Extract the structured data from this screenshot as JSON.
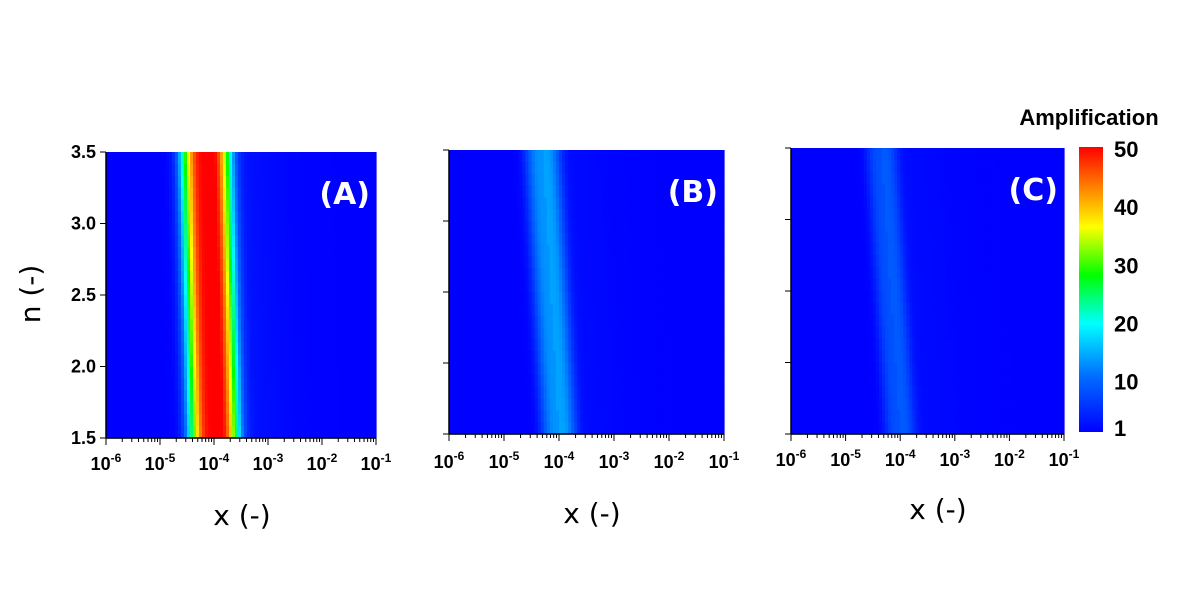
{
  "chart_data": {
    "type": "heatmap",
    "colorbar": {
      "title": "Amplification",
      "ticks": [
        "50",
        "40",
        "30",
        "20",
        "10",
        "1"
      ],
      "tick_values": [
        50,
        40,
        30,
        20,
        10,
        1
      ],
      "range": [
        1,
        50
      ],
      "colors": [
        "#0000ff",
        "#00ffff",
        "#00ff00",
        "#ffff00",
        "#ff0000"
      ]
    },
    "x_axis": {
      "label": "x (-)",
      "scale": "log",
      "range": [
        1e-06,
        0.1
      ],
      "ticks": [
        {
          "base": "10",
          "exp": "-6"
        },
        {
          "base": "10",
          "exp": "-5"
        },
        {
          "base": "10",
          "exp": "-4"
        },
        {
          "base": "10",
          "exp": "-3"
        },
        {
          "base": "10",
          "exp": "-2"
        },
        {
          "base": "10",
          "exp": "-1"
        }
      ]
    },
    "y_axis": {
      "label": "n (-)",
      "range": [
        1.5,
        3.5
      ],
      "ticks": [
        "1.5",
        "2.0",
        "2.5",
        "3.0",
        "3.5"
      ]
    },
    "panels": [
      {
        "label": "(A)",
        "peak_amplification": 50,
        "ridge_x_at_n_min": 0.0001,
        "ridge_x_at_n_max": 7e-05,
        "ridge_log_width": 0.45,
        "background_amplification": 3
      },
      {
        "label": "(B)",
        "peak_amplification": 13,
        "ridge_x_at_n_min": 0.0001,
        "ridge_x_at_n_max": 5e-05,
        "ridge_log_width": 0.32,
        "background_amplification": 2
      },
      {
        "label": "(C)",
        "peak_amplification": 8,
        "ridge_x_at_n_min": 0.0001,
        "ridge_x_at_n_max": 4.5e-05,
        "ridge_log_width": 0.28,
        "background_amplification": 2
      }
    ]
  }
}
